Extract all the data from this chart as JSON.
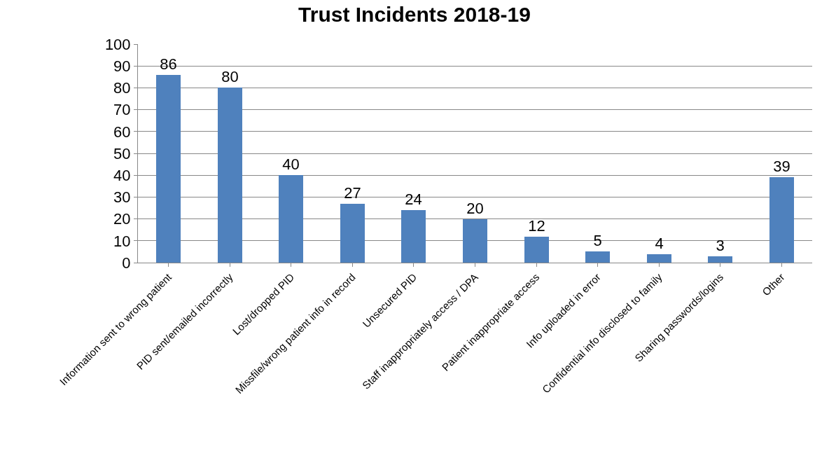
{
  "chart_data": {
    "type": "bar",
    "title": "Trust Incidents 2018-19",
    "categories": [
      "Information sent to wrong patient",
      "PID sent/emailed incorrectly",
      "Lost/dropped PID",
      "Missfile/wrong patient info in record",
      "Unsecured PID",
      "Staff inappropriately access / DPA",
      "Patient inappropriate access",
      "Info uploaded in error",
      "Confidential info disclosed to family",
      "Sharing passwords/logins",
      "Other"
    ],
    "values": [
      86,
      80,
      40,
      27,
      24,
      20,
      12,
      5,
      4,
      3,
      39
    ],
    "color": "#4f81bd",
    "ylim": [
      0,
      100
    ],
    "yticks": [
      0,
      10,
      20,
      30,
      40,
      50,
      60,
      70,
      80,
      90,
      100
    ],
    "grid": "y",
    "data_labels": true
  }
}
